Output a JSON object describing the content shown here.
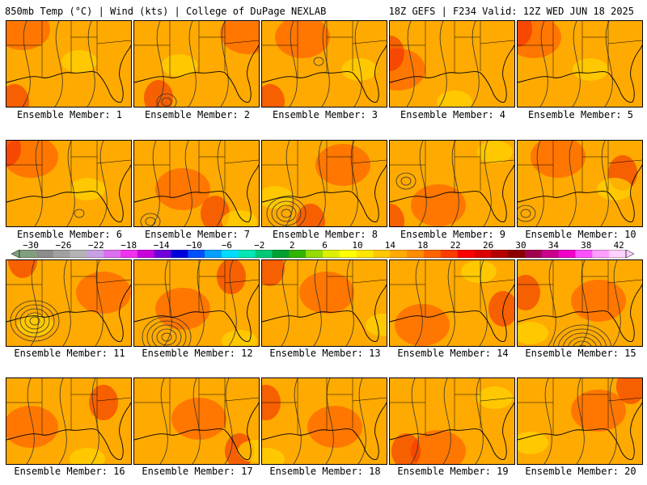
{
  "header": {
    "left": "850mb Temp (°C) | Wind (kts) | College of DuPage NEXLAB",
    "right": "18Z GEFS | F234 Valid: 12Z WED JUN 18 2025"
  },
  "colors": {
    "background": "#ffffff",
    "field_base": "#ffaa00",
    "field_warm": "#ff6600",
    "field_cool": "#ffd400",
    "field_hot": "#ee2200",
    "contour": "#333333"
  },
  "colorbar": {
    "labels": [
      "−30",
      "−26",
      "−22",
      "−18",
      "−14",
      "−10",
      "−6",
      "−2",
      "2",
      "6",
      "10",
      "14",
      "18",
      "22",
      "26",
      "30",
      "34",
      "38",
      "42"
    ],
    "colors": [
      "#7f9f7f",
      "#8c8c8c",
      "#a0a0a0",
      "#b4b4b4",
      "#c8a0e6",
      "#dc6ef0",
      "#f032f0",
      "#c800dc",
      "#6e00dc",
      "#0000dc",
      "#0050ff",
      "#00a0ff",
      "#00dcff",
      "#00e6b4",
      "#00c878",
      "#00a032",
      "#32b400",
      "#96dc00",
      "#dcf000",
      "#ffff00",
      "#ffe600",
      "#ffc800",
      "#ffaa00",
      "#ff8c00",
      "#ff6400",
      "#ff3c00",
      "#ff0000",
      "#dc0000",
      "#b40000",
      "#8c0000",
      "#a00050",
      "#c8008c",
      "#f000c8",
      "#ff50ff",
      "#ffa0ff",
      "#ffd2ff"
    ]
  },
  "members": [
    {
      "label": "Ensemble Member: 1"
    },
    {
      "label": "Ensemble Member: 2"
    },
    {
      "label": "Ensemble Member: 3"
    },
    {
      "label": "Ensemble Member: 4"
    },
    {
      "label": "Ensemble Member: 5"
    },
    {
      "label": "Ensemble Member: 6"
    },
    {
      "label": "Ensemble Member: 7"
    },
    {
      "label": "Ensemble Member: 8"
    },
    {
      "label": "Ensemble Member: 9"
    },
    {
      "label": "Ensemble Member: 10"
    },
    {
      "label": "Ensemble Member: 11"
    },
    {
      "label": "Ensemble Member: 12"
    },
    {
      "label": "Ensemble Member: 13"
    },
    {
      "label": "Ensemble Member: 14"
    },
    {
      "label": "Ensemble Member: 15"
    },
    {
      "label": "Ensemble Member: 16"
    },
    {
      "label": "Ensemble Member: 17"
    },
    {
      "label": "Ensemble Member: 18"
    },
    {
      "label": "Ensemble Member: 19"
    },
    {
      "label": "Ensemble Member: 20"
    }
  ]
}
